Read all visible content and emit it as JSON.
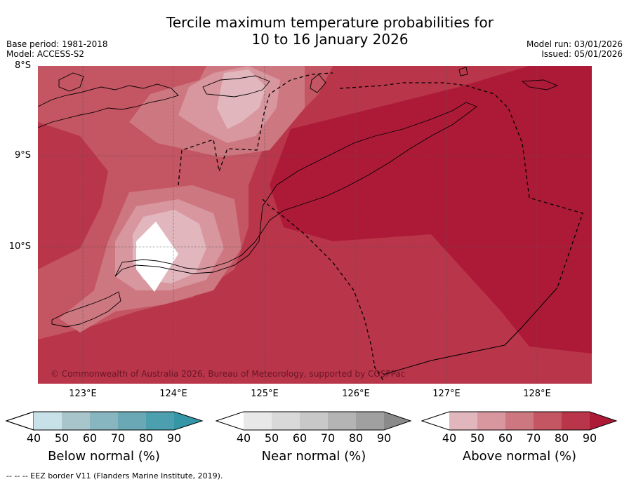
{
  "title_line1": "Tercile maximum temperature probabilities for",
  "title_line2": "10 to 16 January 2026",
  "base_period": "Base period: 1981-2018",
  "model": "Model: ACCESS-S2",
  "model_run": "Model run: 03/01/2026",
  "issued": "Issued: 05/01/2026",
  "lat_labels": [
    "8°S",
    "9°S",
    "10°S"
  ],
  "lon_labels": [
    "123°E",
    "124°E",
    "125°E",
    "126°E",
    "127°E",
    "128°E"
  ],
  "copyright": "© Commonwealth of Australia 2026, Bureau of Meteorology, supported by COSPPac",
  "colorbars": [
    {
      "label": "Below normal (%)",
      "ticks": [
        "40",
        "50",
        "60",
        "70",
        "80",
        "90"
      ],
      "colors": [
        "#c8e1e8",
        "#a7c5cb",
        "#88b6c0",
        "#6aa8b5",
        "#4c9faf",
        "#3596a8"
      ]
    },
    {
      "label": "Near normal (%)",
      "ticks": [
        "40",
        "50",
        "60",
        "70",
        "80",
        "90"
      ],
      "colors": [
        "#e8e8e8",
        "#d9d9d9",
        "#c8c8c8",
        "#b4b4b4",
        "#a0a0a0",
        "#8a8a8a"
      ]
    },
    {
      "label": "Above normal (%)",
      "ticks": [
        "40",
        "50",
        "60",
        "70",
        "80",
        "90"
      ],
      "colors": [
        "#e2b6bd",
        "#d8969f",
        "#cd7780",
        "#c45562",
        "#b9354a",
        "#ad1a38"
      ]
    }
  ],
  "footer": "--  --  -- EEZ border V11 (Flanders Marine Institute, 2019)."
}
